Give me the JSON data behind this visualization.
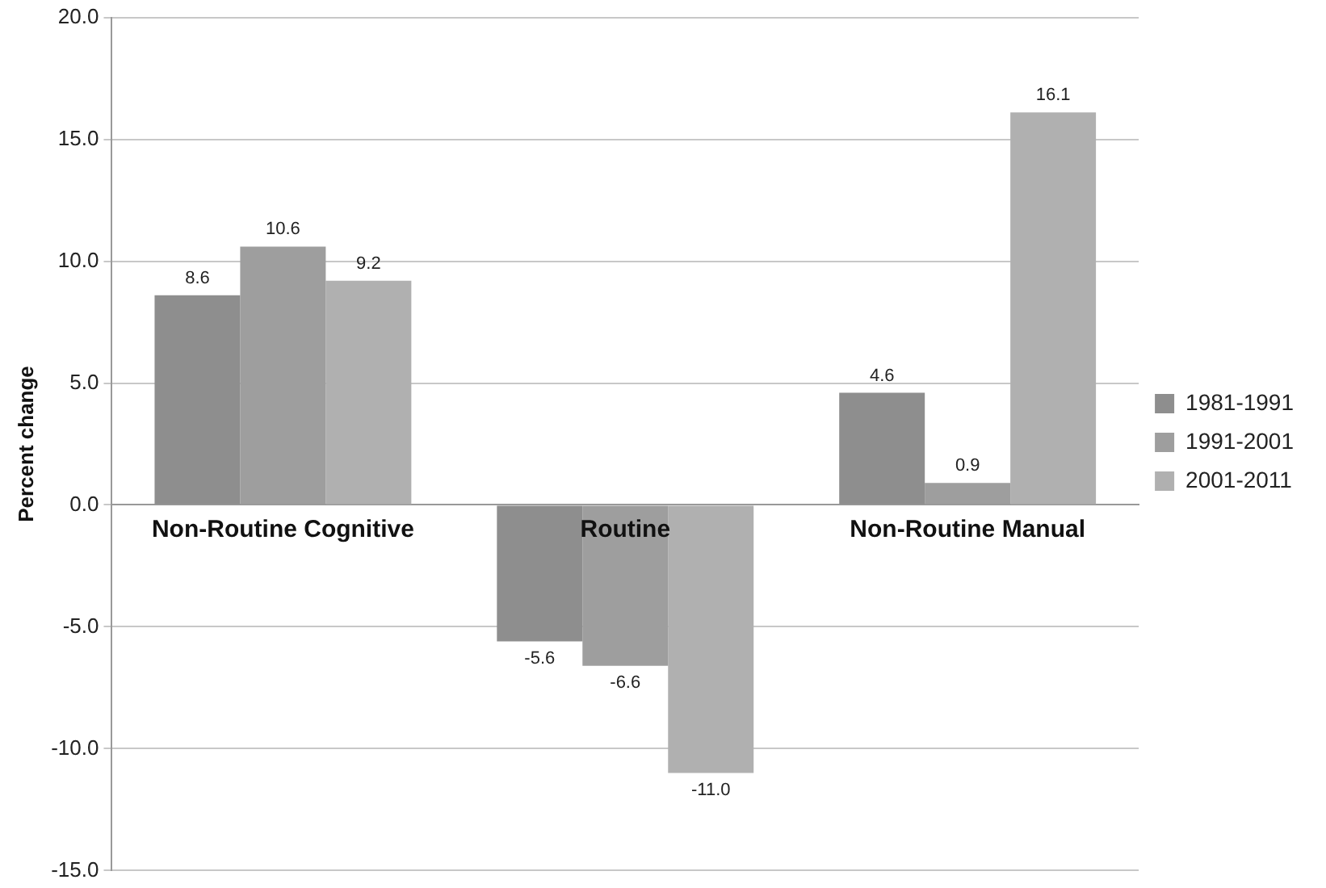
{
  "chart_data": {
    "type": "bar",
    "ylabel": "Percent change",
    "categories": [
      "Non-Routine Cognitive",
      "Routine",
      "Non-Routine Manual"
    ],
    "series": [
      {
        "name": "1981-1991",
        "color": "#8e8e8e",
        "values": [
          8.6,
          -5.6,
          4.6
        ],
        "value_labels": [
          "8.6",
          "-5.6",
          "4.6"
        ]
      },
      {
        "name": "1991-2001",
        "color": "#9e9e9e",
        "values": [
          10.6,
          -6.6,
          0.9
        ],
        "value_labels": [
          "10.6",
          "-6.6",
          "0.9"
        ]
      },
      {
        "name": "2001-2011",
        "color": "#b0b0b0",
        "values": [
          9.2,
          -11.0,
          16.1
        ],
        "value_labels": [
          "9.2",
          "-11.0",
          "16.1"
        ]
      }
    ],
    "ylim": [
      -15,
      20
    ],
    "yticks": [
      {
        "value": -15,
        "label": "-15.0"
      },
      {
        "value": -10,
        "label": "-10.0"
      },
      {
        "value": -5,
        "label": "-5.0"
      },
      {
        "value": 0,
        "label": "0.0"
      },
      {
        "value": 5,
        "label": "5.0"
      },
      {
        "value": 10,
        "label": "10.0"
      },
      {
        "value": 15,
        "label": "15.0"
      },
      {
        "value": 20,
        "label": "20.0"
      }
    ],
    "grid": "y",
    "legend": "right"
  }
}
